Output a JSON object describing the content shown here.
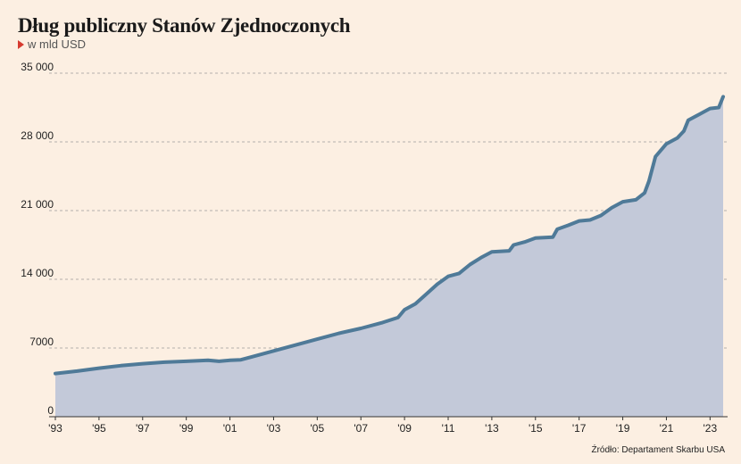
{
  "header": {
    "title": "Dług publiczny Stanów Zjednoczonych",
    "subtitle": "w mld USD"
  },
  "source": "Źródło: Departament Skarbu USA",
  "colors": {
    "background": "#fcefe2",
    "line": "#4f7a98",
    "area": "#c3c9d9",
    "grid": "#9a9a9a"
  },
  "chart_data": {
    "type": "area",
    "title": "Dług publiczny Stanów Zjednoczonych",
    "subtitle": "w mld USD",
    "xlabel": "",
    "ylabel": "",
    "xlim": [
      1993,
      2023.6
    ],
    "ylim": [
      0,
      35000
    ],
    "yticks": [
      0,
      7000,
      14000,
      21000,
      28000,
      35000
    ],
    "ytick_labels": [
      "0",
      "7000",
      "14 000",
      "21 000",
      "28 000",
      "35 000"
    ],
    "xticks": [
      1993,
      1995,
      1997,
      1999,
      2001,
      2003,
      2005,
      2007,
      2009,
      2011,
      2013,
      2015,
      2017,
      2019,
      2021,
      2023
    ],
    "xtick_labels": [
      "'93",
      "'95",
      "'97",
      "'99",
      "'01",
      "'03",
      "'05",
      "'07",
      "'09",
      "'11",
      "'13",
      "'15",
      "'17",
      "'19",
      "'21",
      "'23"
    ],
    "grid": "horizontal dashed",
    "legend": "none",
    "series": [
      {
        "x": [
          1993.0,
          1994.0,
          1995.0,
          1996.0,
          1997.0,
          1998.0,
          1999.0,
          2000.0,
          2000.5,
          2001.0,
          2001.5,
          2002.0,
          2003.0,
          2004.0,
          2005.0,
          2006.0,
          2007.0,
          2008.0,
          2008.7,
          2009.0,
          2009.5,
          2010.0,
          2010.5,
          2011.0,
          2011.5,
          2012.0,
          2012.5,
          2013.0,
          2013.8,
          2014.0,
          2014.5,
          2015.0,
          2015.8,
          2016.0,
          2016.5,
          2017.0,
          2017.5,
          2018.0,
          2018.5,
          2019.0,
          2019.6,
          2020.0,
          2020.2,
          2020.5,
          2021.0,
          2021.5,
          2021.8,
          2022.0,
          2022.5,
          2023.0,
          2023.4,
          2023.6
        ],
        "y": [
          4400,
          4650,
          4950,
          5200,
          5400,
          5550,
          5650,
          5750,
          5650,
          5750,
          5800,
          6100,
          6700,
          7300,
          7900,
          8500,
          9000,
          9600,
          10100,
          10900,
          11500,
          12500,
          13500,
          14300,
          14600,
          15500,
          16200,
          16800,
          16900,
          17500,
          17800,
          18200,
          18300,
          19100,
          19500,
          19950,
          20050,
          20500,
          21300,
          21900,
          22100,
          22800,
          24000,
          26500,
          27800,
          28400,
          29100,
          30200,
          30800,
          31400,
          31500,
          32600
        ]
      }
    ]
  }
}
